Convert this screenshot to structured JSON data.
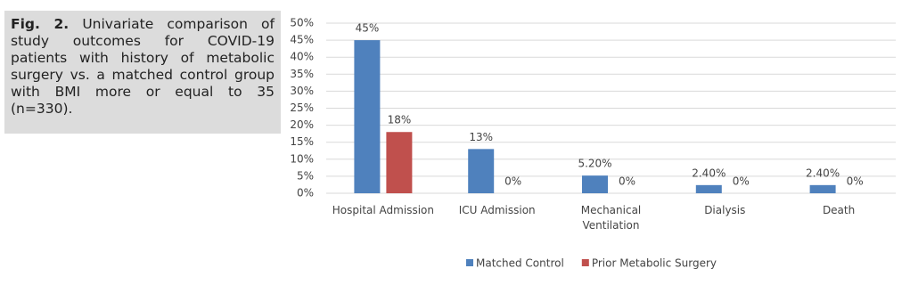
{
  "caption": {
    "label": "Fig. 2.",
    "text": "Univariate comparison of study outcomes for COVID-19 patients with history of metabolic surgery vs. a matched control group with BMI more or equal to 35 (n=330)."
  },
  "chart_data": {
    "type": "bar",
    "categories": [
      "Hospital Admission",
      "ICU Admission",
      "Mechanical Ventilation",
      "Dialysis",
      "Death"
    ],
    "series": [
      {
        "name": "Matched Control",
        "color": "#4f81bd",
        "values": [
          45,
          13,
          5.2,
          2.4,
          2.4
        ],
        "value_labels": [
          "45%",
          "13%",
          "5.20%",
          "2.40%",
          "2.40%"
        ]
      },
      {
        "name": "Prior Metabolic Surgery",
        "color": "#c0504d",
        "values": [
          18,
          0,
          0,
          0,
          0
        ],
        "value_labels": [
          "18%",
          "0%",
          "0%",
          "0%",
          "0%"
        ]
      }
    ],
    "ylim": [
      0,
      50
    ],
    "yticks": [
      {
        "value": 0,
        "label": "0%"
      },
      {
        "value": 5,
        "label": "5%"
      },
      {
        "value": 10,
        "label": "10%"
      },
      {
        "value": 15,
        "label": "15%"
      },
      {
        "value": 20,
        "label": "20%"
      },
      {
        "value": 25,
        "label": "25%"
      },
      {
        "value": 30,
        "label": "30%"
      },
      {
        "value": 35,
        "label": "35%"
      },
      {
        "value": 40,
        "label": "40%"
      },
      {
        "value": 45,
        "label": "45%"
      },
      {
        "value": 50,
        "label": "50%"
      }
    ],
    "grid": true,
    "legend": "bottom"
  }
}
